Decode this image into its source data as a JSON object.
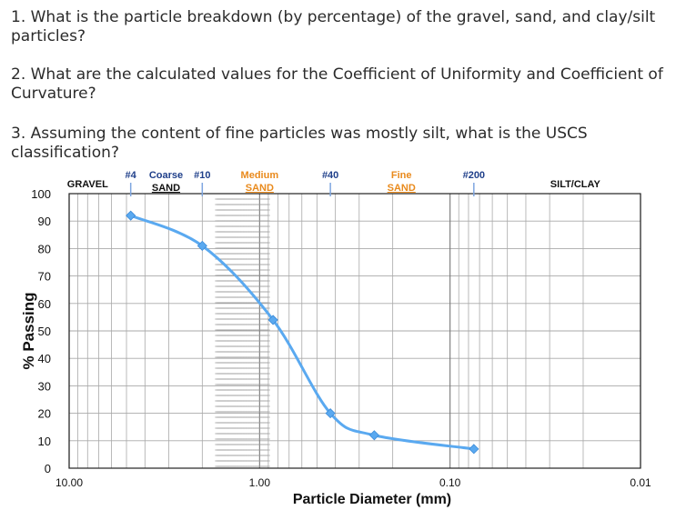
{
  "questions": [
    "1. What is the particle breakdown (by percentage) of the gravel, sand, and clay/silt particles?",
    "2. What are the calculated values for the Coefficient of Uniformity and Coefficient of Curvature?",
    "3. Assuming the content of fine particles was mostly silt, what is the USCS classification?"
  ],
  "colors": {
    "curve": "#5aa9f0",
    "sand_label": "#e98a1c",
    "sieve_label": "#1f3f8a",
    "sieve_tick": "#7ea6e0",
    "grid": "#a9a9a9"
  },
  "chart_data": {
    "type": "line",
    "title": "",
    "xlabel": "Particle Diameter (mm)",
    "ylabel": "% Passing",
    "x_scale": "log",
    "x_reversed": true,
    "xlim": [
      10,
      0.01
    ],
    "ylim": [
      0,
      100
    ],
    "x_ticks": [
      {
        "value": 10,
        "label": "10.00"
      },
      {
        "value": 1,
        "label": "1.00"
      },
      {
        "value": 0.1,
        "label": "0.10"
      },
      {
        "value": 0.01,
        "label": "0.01"
      }
    ],
    "y_ticks": [
      0,
      10,
      20,
      30,
      40,
      50,
      60,
      70,
      80,
      90,
      100
    ],
    "grid": true,
    "series": [
      {
        "x": [
          4.75,
          2.0,
          0.85,
          0.425,
          0.25,
          0.075
        ],
        "y": [
          92,
          81,
          54,
          20,
          12,
          7
        ]
      }
    ],
    "sieves": [
      {
        "label": "#4",
        "value": 4.75
      },
      {
        "label": "#10",
        "value": 2.0
      },
      {
        "label": "#40",
        "value": 0.425
      },
      {
        "label": "#200",
        "value": 0.075
      }
    ],
    "soil_zones": [
      {
        "label": "GRAVEL",
        "value": 8.0,
        "kind": "plain"
      },
      {
        "label": "Coarse",
        "value": 3.1,
        "kind": "coarse-sand"
      },
      {
        "label": "Medium\nSAND",
        "value": 1.0,
        "kind": "sand"
      },
      {
        "label": "Fine\nSAND",
        "value": 0.18,
        "kind": "sand"
      },
      {
        "label": "SILT/CLAY",
        "value": 0.022,
        "kind": "plain"
      }
    ],
    "coarse_sand_sub": "SAND"
  }
}
